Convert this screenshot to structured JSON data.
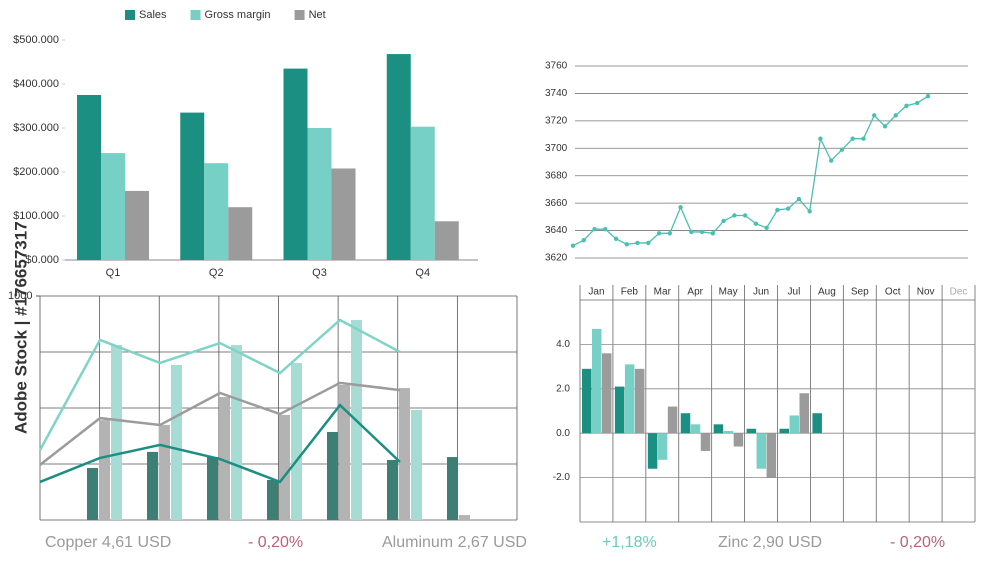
{
  "chart_data": [
    {
      "type": "bar",
      "categories": [
        "Q1",
        "Q2",
        "Q3",
        "Q4"
      ],
      "series": [
        {
          "name": "Sales",
          "color": "#1b8f82",
          "values": [
            375000,
            335000,
            435000,
            468000
          ]
        },
        {
          "name": "Gross margin",
          "color": "#76d0c5",
          "values": [
            243000,
            220000,
            300000,
            303000
          ]
        },
        {
          "name": "Net",
          "color": "#9b9b9b",
          "values": [
            157000,
            120000,
            208000,
            88000
          ]
        }
      ],
      "ylim": [
        0,
        500000
      ],
      "yticks": [
        {
          "value": 0,
          "label": "$0.000"
        },
        {
          "value": 100000,
          "label": "$100.000"
        },
        {
          "value": 200000,
          "label": "$200.000"
        },
        {
          "value": 300000,
          "label": "$300.000"
        },
        {
          "value": 400000,
          "label": "$400.000"
        },
        {
          "value": 500000,
          "label": "$500.000"
        }
      ],
      "legend": "top"
    },
    {
      "type": "line",
      "color": "#4bbfb0",
      "categories": [
        null,
        null,
        null,
        null,
        null,
        null,
        null,
        null,
        null,
        null,
        null,
        null,
        null,
        null,
        null,
        null,
        null,
        null,
        null,
        null,
        null,
        null,
        null,
        null,
        null,
        null,
        null,
        null,
        null,
        null,
        null,
        null,
        null,
        null
      ],
      "values": [
        3629,
        3633,
        3641,
        3641,
        3634,
        3630,
        3631,
        3631,
        3638,
        3638,
        3657,
        3639,
        3639,
        3638,
        3647,
        3651,
        3651,
        3645,
        3642,
        3655,
        3656,
        3663,
        3654,
        3707,
        3691,
        3699,
        3707,
        3707,
        3724,
        3716,
        3724,
        3731,
        3733,
        3738
      ],
      "ylim": [
        3620,
        3760
      ],
      "yticks": [
        3620,
        3640,
        3660,
        3680,
        3700,
        3720,
        3740,
        3760
      ],
      "grid": true
    },
    {
      "type": "combo",
      "categories": [
        null,
        null,
        null,
        null,
        null,
        null,
        null
      ],
      "series": [
        {
          "kind": "bar",
          "color": "#3d7f74",
          "values": [
            232,
            304,
            281,
            179,
            393,
            268,
            281
          ]
        },
        {
          "kind": "bar",
          "color": "#b3b3b3",
          "values": [
            446,
            424,
            549,
            469,
            603,
            589,
            22
          ]
        },
        {
          "kind": "bar",
          "color": "#a6dcd3",
          "values": [
            781,
            692,
            781,
            701,
            893,
            491,
            null
          ]
        },
        {
          "kind": "line",
          "color": "#7fd3c7",
          "values": [
            312,
            804,
            701,
            790,
            656,
            893,
            750
          ]
        },
        {
          "kind": "line",
          "color": "#9c9c9c",
          "values": [
            246,
            455,
            424,
            567,
            473,
            612,
            580
          ]
        },
        {
          "kind": "line",
          "color": "#1b8f82",
          "values": [
            170,
            277,
            335,
            272,
            170,
            513,
            259
          ]
        }
      ],
      "ylim": [
        0,
        1000
      ],
      "yticks": [
        1000
      ],
      "grid": true
    },
    {
      "type": "bar",
      "categories": [
        "Jan",
        "Feb",
        "Mar",
        "Apr",
        "May",
        "Jun",
        "Jul",
        "Aug",
        "Sep",
        "Oct",
        "Nov",
        "Dec"
      ],
      "series": [
        {
          "color": "#1b8f82",
          "values": [
            2.9,
            2.1,
            -1.6,
            0.9,
            0.4,
            0.2,
            0.2,
            0.9,
            null,
            null,
            null,
            null
          ]
        },
        {
          "color": "#76d0c5",
          "values": [
            4.7,
            3.1,
            -1.2,
            0.4,
            0.1,
            -1.6,
            0.8,
            null,
            null,
            null,
            null,
            null
          ]
        },
        {
          "color": "#9b9b9b",
          "values": [
            3.6,
            2.9,
            1.2,
            -0.8,
            -0.6,
            -2.0,
            1.8,
            null,
            null,
            null,
            null,
            null
          ]
        }
      ],
      "ylim": [
        -4,
        6
      ],
      "yticks": [
        {
          "value": -2,
          "label": "-2.0"
        },
        {
          "value": 0,
          "label": "0.0"
        },
        {
          "value": 2,
          "label": "2.0"
        },
        {
          "value": 4,
          "label": "4.0"
        }
      ],
      "grid": true
    }
  ],
  "ticker": [
    {
      "text": "Copper 4,61 USD",
      "change": "- 0,20%",
      "color": "#b5637d"
    },
    {
      "text": "Aluminum 2,67 USD",
      "change": "+1,18%",
      "color": "#6ccabc"
    },
    {
      "text": "Zinc 2,90 USD",
      "change": "- 0,20%",
      "color": "#b5637d"
    }
  ],
  "watermark": "Adobe Stock | #176657317"
}
